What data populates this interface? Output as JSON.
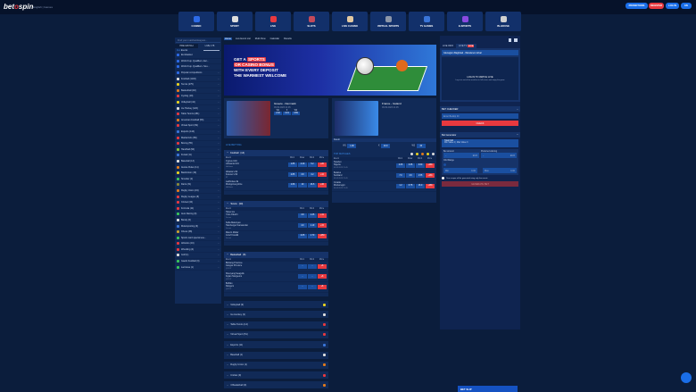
{
  "header": {
    "logo": "betospin",
    "logo_a": "bet",
    "logo_b": "o",
    "logo_c": "spin",
    "lang": "English | Games",
    "promotions": "PROMOTIONS",
    "register": "REGISTER",
    "login": "LOG IN",
    "flag": "EN"
  },
  "nav": [
    {
      "label": "CASINO",
      "color": "#2d6be8"
    },
    {
      "label": "SPORT",
      "color": "#dddddd"
    },
    {
      "label": "LIVE",
      "color": "#e8393f"
    },
    {
      "label": "SLOTS",
      "color": "#c44a5a"
    },
    {
      "label": "LIVE CASINO",
      "color": "#e3c9a1"
    },
    {
      "label": "VIRTUAL SPORTS",
      "color": "#8c96a8"
    },
    {
      "label": "TV GAMES",
      "color": "#3a75d8"
    },
    {
      "label": "E-SPORTS",
      "color": "#8a4ae0"
    },
    {
      "label": "IN-HOUSE",
      "color": "#d0d0d0"
    }
  ],
  "sidebar": {
    "search_placeholder": "Find your matches/leagues...",
    "tab_prematch": "PRE MATCH",
    "tab_live": "LIVE",
    "live_count": "175",
    "filter_all": "ALL",
    "filter_label": "Events",
    "items": [
      {
        "label": "Eurobasket",
        "c": "#2d6be8"
      },
      {
        "label": "World Cup. Qualifiers. Eur...",
        "c": "#2d6be8"
      },
      {
        "label": "World Cup. Qualifiers. Sou...",
        "c": "#2d6be8"
      },
      {
        "label": "Popular competitions",
        "c": "#2d6be8"
      },
      {
        "label": "Football (1103)",
        "c": "#dddddd"
      },
      {
        "label": "Tennis (275)",
        "c": "#e8d21f"
      },
      {
        "label": "Basketball (92)",
        "c": "#e07a1c"
      },
      {
        "label": "Cycling (19)",
        "c": "#e8393f"
      },
      {
        "label": "Volleyball (44)",
        "c": "#e8d21f"
      },
      {
        "label": "Ice Hockey (120)",
        "c": "#dddddd"
      },
      {
        "label": "Table Tennis (281)",
        "c": "#e8393f"
      },
      {
        "label": "American Football (56)",
        "c": "#e07a1c"
      },
      {
        "label": "Virtual Sport (99)",
        "c": "#e8393f"
      },
      {
        "label": "Esports (144)",
        "c": "#3a75d8"
      },
      {
        "label": "Martial Arts (89)",
        "c": "#e8393f"
      },
      {
        "label": "Boxing (55)",
        "c": "#e8393f"
      },
      {
        "label": "Handball (90)",
        "c": "#8ac43a"
      },
      {
        "label": "Futsal (11)",
        "c": "#3a75d8"
      },
      {
        "label": "Baseball (13)",
        "c": "#dddddd"
      },
      {
        "label": "Aussie Rules (11)",
        "c": "#e07a1c"
      },
      {
        "label": "Badminton (16)",
        "c": "#e8d21f"
      },
      {
        "label": "Snooker (2)",
        "c": "#3ac45a"
      },
      {
        "label": "Darts (31)",
        "c": "#8a8a3a"
      },
      {
        "label": "Rugby Union (19)",
        "c": "#e07a1c"
      },
      {
        "label": "Rugby League (8)",
        "c": "#e8393f"
      },
      {
        "label": "Cricket (40)",
        "c": "#e8393f"
      },
      {
        "label": "Formula (11)",
        "c": "#e8393f"
      },
      {
        "label": "Auto Racing (9)",
        "c": "#3ac45a"
      },
      {
        "label": "Bandy (6)",
        "c": "#dddddd"
      },
      {
        "label": "Motorsporting (6)",
        "c": "#3a75d8"
      },
      {
        "label": "Chess (38)",
        "c": "#c8a030"
      },
      {
        "label": "Sports card special eve...",
        "c": "#3ac45a"
      },
      {
        "label": "Athletics (16)",
        "c": "#e8393f"
      },
      {
        "label": "Wrestling (4)",
        "c": "#e8393f"
      },
      {
        "label": "Golf (1)",
        "c": "#dddddd"
      },
      {
        "label": "Gaelic Football (9)",
        "c": "#3ac45a"
      },
      {
        "label": "Lacrosse (1)",
        "c": "#3ac45a"
      }
    ]
  },
  "crumbs": [
    "Home",
    "Live Event List",
    "Multi View",
    "Calendar",
    "Results"
  ],
  "banner": {
    "l1a": "GET A ",
    "l1b": "SPORTS",
    "l2": "OR CASINO BONUS",
    "l3": "WITH EVERY DEPOSIT",
    "l4": "THE WARMEST WELCOME"
  },
  "matches": [
    {
      "title": "Greece - Denmark",
      "date": "09.09.2023 21:45",
      "odds": [
        {
          "k": "W1",
          "v": "2.02"
        },
        {
          "k": "X",
          "v": "3.19"
        },
        {
          "k": "W2",
          "v": "3.89"
        }
      ]
    },
    {
      "title": "France - Iceland",
      "date": "09.09.2023 21:45",
      "odds": []
    }
  ],
  "live_label": "LIVE BETTING",
  "cols": {
    "event": "Event",
    "win1": "Win1",
    "draw": "Draw",
    "win2": "Win2",
    "more": "More"
  },
  "sections": [
    {
      "name": "Football",
      "count": "(14)",
      "draw": true,
      "rows": [
        {
          "a": "Cyprus U19",
          "b": "Lithuania U19",
          "m": "Half time",
          "o": [
            "1.85",
            "4.29",
            "5.2"
          ],
          "more": "+20"
        },
        {
          "a": "Albania U19",
          "b": "Kosovo U19",
          "m": "31'",
          "o": [
            "2.85",
            "3.8",
            "3.2"
          ],
          "more": "+42"
        },
        {
          "a": "Ladbrokes IE",
          "b": "Montgomeryshire",
          "m": "Half time",
          "o": [
            "1.66",
            "10",
            "16.5"
          ],
          "more": "+46"
        }
      ]
    },
    {
      "name": "Tennis",
      "count": "(30)",
      "draw": false,
      "rows": [
        {
          "a": "Hanel Lis",
          "b": "Yuko Okuchi",
          "m": "1st set",
          "o": [
            "3.8",
            "1.25"
          ],
          "more": "+11"
        },
        {
          "a": "Sofia Matonyan",
          "b": "Hamburger Kamarenko",
          "m": "1st set",
          "o": [
            "4.0",
            "1.19"
          ],
          "more": "+15"
        },
        {
          "a": "Marvin Moller",
          "b": "Jozef Kovalik",
          "m": "1st set",
          "o": [
            "2.05",
            "1.70"
          ],
          "more": "+250"
        }
      ]
    },
    {
      "name": "Basketball",
      "count": "(8)",
      "draw": false,
      "rows": [
        {
          "a": "Bishang Province",
          "b": "Jiangsu Province",
          "m": "Q1 1/2'",
          "o": [
            "-",
            "-"
          ],
          "more": "+8"
        },
        {
          "a": "Shenyang Seagulls",
          "b": "Fujian Sturgeons",
          "m": "Q3 1/2'",
          "o": [
            "-",
            "-"
          ],
          "more": "+8"
        },
        {
          "a": "Buffalo",
          "b": "Rangers",
          "m": "Q3 1/2'",
          "o": [
            "-",
            "-"
          ],
          "more": "+8"
        }
      ]
    }
  ],
  "collapsed": [
    {
      "label": "Volleyball (9)",
      "c": "#e8d21f"
    },
    {
      "label": "Ice Hockey (3)",
      "c": "#dddddd"
    },
    {
      "label": "Table Tennis (14)",
      "c": "#e8393f"
    },
    {
      "label": "Virtual Sport (51)",
      "c": "#e8393f"
    },
    {
      "label": "Esports (11)",
      "c": "#3a75d8"
    },
    {
      "label": "Baseball (1)",
      "c": "#dddddd"
    },
    {
      "label": "Rugby Union (1)",
      "c": "#e07a1c"
    },
    {
      "label": "Cricket (9)",
      "c": "#e8393f"
    },
    {
      "label": "3 Basketball (9)",
      "c": "#e07a1c"
    }
  ],
  "result": {
    "label": "Result",
    "w1k": "W1",
    "w1": "1.90",
    "xk": "X",
    "x": "10.0",
    "w2k": "W2",
    "w2": "33"
  },
  "top": {
    "label": "TOP MATCHES",
    "rows": [
      {
        "a": "Sweden",
        "b": "Nigeria",
        "d": "09.09.2023 21:45",
        "o": [
          "2.05",
          "3.35",
          "3.60"
        ],
        "more": "+266"
      },
      {
        "a": "Belarus",
        "b": "Scotland",
        "d": "09.09.2023 21:45",
        "o": [
          "7.0",
          "3.9",
          "1.55"
        ],
        "more": "+266"
      },
      {
        "a": "Croatia",
        "b": "Montenegro",
        "d": "09.09.2023 21:45",
        "o": [
          "1.2",
          "6.75",
          "16.0"
        ],
        "more": "+266"
      }
    ]
  },
  "right": {
    "tab_info": "LIVE INFO",
    "tab_tv": "LIVE TV",
    "tv_badge": "LIVE",
    "match_select": "Glenoglen Baghdad - Wanderers Arkal",
    "video_title": "LOG IN TO WATCH LIVE",
    "video_text": "Log in to watch live matches in full screen and enjoy the game",
    "bet_checker": "BET CHECKER",
    "betslip_placeholder": "Enter Betslip ID",
    "check": "CHECK",
    "bet_generator": "Bet Generator",
    "total_odd": "Total Odd",
    "total_sub": "Min Value 2 | Max Value 3",
    "bet_amount": "Bet amount",
    "pref_win": "Preferred winning",
    "cur": "EUR",
    "odd_range": "Odd Range",
    "min": "Min",
    "max": "Max",
    "zero": "0.00",
    "coupon_note": "Your coupon will be generated using only live events",
    "generate": "GENERATE BET"
  },
  "betslip": "BET SLIP"
}
